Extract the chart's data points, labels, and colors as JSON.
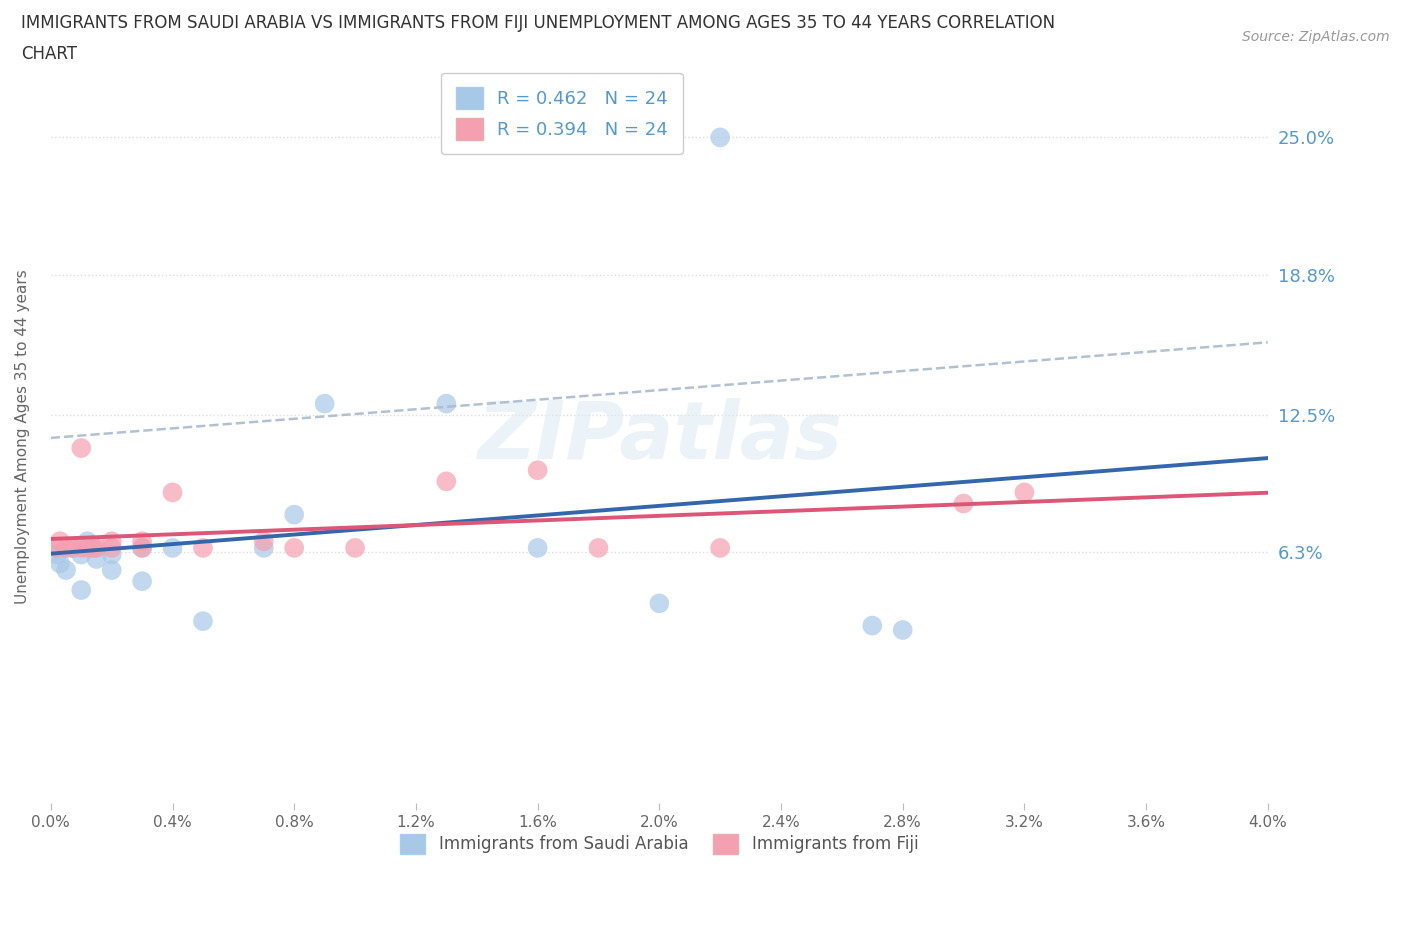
{
  "title_line1": "IMMIGRANTS FROM SAUDI ARABIA VS IMMIGRANTS FROM FIJI UNEMPLOYMENT AMONG AGES 35 TO 44 YEARS CORRELATION",
  "title_line2": "CHART",
  "source": "Source: ZipAtlas.com",
  "ylabel": "Unemployment Among Ages 35 to 44 years",
  "legend_saudi_stat": "R = 0.462   N = 24",
  "legend_fiji_stat": "R = 0.394   N = 24",
  "legend_label_saudi": "Immigrants from Saudi Arabia",
  "legend_label_fiji": "Immigrants from Fiji",
  "color_saudi": "#a8c8e8",
  "color_fiji": "#f4a0b0",
  "trendline_color_saudi": "#3366aa",
  "trendline_color_fiji": "#dd5577",
  "trendline_dash_color": "#aabbcc",
  "background_color": "#ffffff",
  "xlim": [
    0.0,
    0.04
  ],
  "ylim": [
    -0.05,
    0.28
  ],
  "yticks": [
    0.063,
    0.125,
    0.188,
    0.25
  ],
  "ytick_labels": [
    "6.3%",
    "12.5%",
    "18.8%",
    "25.0%"
  ],
  "xticks": [
    0.0,
    0.004,
    0.008,
    0.012,
    0.016,
    0.02,
    0.024,
    0.028,
    0.032,
    0.036,
    0.04
  ],
  "xtick_labels": [
    "0.0%",
    "0.4%",
    "0.8%",
    "1.2%",
    "1.6%",
    "2.0%",
    "2.4%",
    "2.8%",
    "3.2%",
    "3.6%",
    "4.0%"
  ],
  "saudi_x": [
    0.0002,
    0.0004,
    0.0006,
    0.0008,
    0.001,
    0.001,
    0.0012,
    0.0013,
    0.0015,
    0.0016,
    0.002,
    0.002,
    0.0022,
    0.0025,
    0.003,
    0.003,
    0.0035,
    0.005,
    0.007,
    0.009,
    0.013,
    0.016,
    0.022,
    0.028
  ],
  "saudi_y": [
    0.06,
    0.05,
    0.055,
    0.06,
    0.045,
    0.06,
    0.07,
    0.065,
    0.06,
    0.065,
    0.065,
    0.055,
    0.075,
    0.065,
    0.05,
    0.065,
    0.065,
    0.035,
    0.065,
    0.12,
    0.13,
    0.065,
    0.04,
    0.03
  ],
  "fiji_x": [
    0.0002,
    0.0004,
    0.0006,
    0.0008,
    0.001,
    0.001,
    0.0012,
    0.0013,
    0.0015,
    0.0016,
    0.002,
    0.002,
    0.0022,
    0.0025,
    0.003,
    0.003,
    0.0035,
    0.005,
    0.007,
    0.009,
    0.013,
    0.016,
    0.022,
    0.028
  ],
  "fiji_y": [
    0.065,
    0.07,
    0.065,
    0.065,
    0.11,
    0.065,
    0.065,
    0.065,
    0.065,
    0.065,
    0.065,
    0.07,
    0.065,
    0.09,
    0.065,
    0.065,
    0.065,
    0.065,
    0.065,
    0.065,
    0.095,
    0.1,
    0.065,
    0.09
  ],
  "grid_color": "#dddddd",
  "tick_color": "#5599cc",
  "watermark_color": "#dce8f4",
  "point_size": 200
}
